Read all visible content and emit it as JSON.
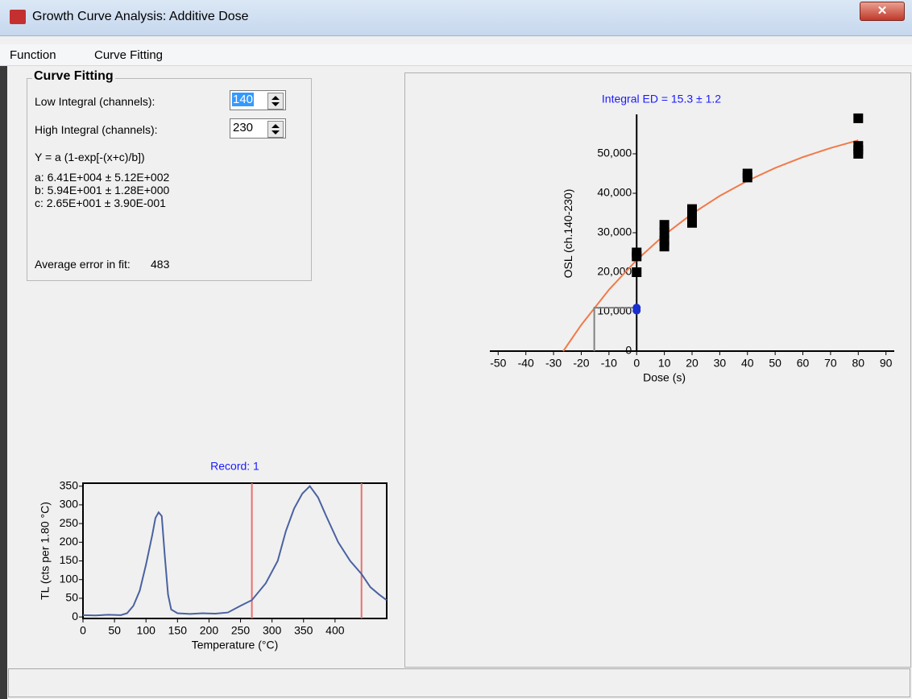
{
  "window": {
    "title": "Growth Curve Analysis: Additive Dose"
  },
  "menu": [
    "Function",
    "Curve Fitting"
  ],
  "curve_fitting": {
    "title": "Curve Fitting",
    "low_label": "Low Integral (channels):",
    "low_value": "140",
    "high_label": "High Integral (channels):",
    "high_value": "230",
    "equation": "Y = a (1-exp[-(x+c)/b])",
    "params": [
      "a: 6.41E+004 ± 5.12E+002",
      "b: 5.94E+001 ± 1.28E+000",
      "c: 2.65E+001 ± 3.90E-001"
    ],
    "avg_error_label": "Average error in fit:",
    "avg_error": "483"
  },
  "chart_data": [
    {
      "type": "scatter",
      "axes": "cross",
      "title": "Integral ED = 15.3 ±  1.2",
      "title_color": "#1a1aff",
      "x_label": "Dose (s)",
      "y_label": "OSL (ch.140-230)",
      "xlim": [
        -53,
        93
      ],
      "ylim": [
        0,
        60000
      ],
      "xticks": [
        -50,
        -40,
        -30,
        -20,
        -10,
        0,
        10,
        20,
        30,
        40,
        50,
        60,
        70,
        80,
        90
      ],
      "yticks": [
        0,
        {
          "value": 10000,
          "label": "10,000"
        },
        {
          "value": 20000,
          "label": "20,000"
        },
        {
          "value": 30000,
          "label": "30,000"
        },
        {
          "value": 40000,
          "label": "40,000"
        },
        {
          "value": 50000,
          "label": "50,000"
        }
      ],
      "series": [
        {
          "style": "line",
          "color": "#f07a4a",
          "x": [
            -26.5,
            -20,
            -10,
            0,
            10,
            20,
            30,
            40,
            50,
            60,
            70,
            80
          ],
          "values": [
            0,
            6640,
            15550,
            23070,
            29430,
            34800,
            39340,
            43170,
            46410,
            49160,
            51470,
            53430
          ]
        },
        {
          "style": "line",
          "color": "#808080",
          "x": [
            -15.3,
            -15.3,
            0
          ],
          "values": [
            0,
            11000,
            11000
          ]
        },
        {
          "style": "square",
          "color": "#000000",
          "x": [
            0,
            0,
            0,
            10,
            10,
            10,
            10,
            20,
            20,
            20,
            40,
            40,
            80,
            80,
            80,
            80
          ],
          "values": [
            25000,
            24000,
            20000,
            32000,
            30000,
            28000,
            26500,
            36000,
            34000,
            32500,
            45000,
            44000,
            59000,
            52000,
            51000,
            50000
          ]
        },
        {
          "style": "circle",
          "color": "#1a2fcf",
          "x": [
            0,
            0
          ],
          "values": [
            11000,
            10300
          ]
        }
      ]
    },
    {
      "type": "line",
      "axes": "box",
      "title": "Record: 1",
      "title_color": "#1a1aff",
      "x_label": "Temperature (°C)",
      "y_label": "TL (cts per 1.80 °C)",
      "xlim": [
        0,
        482
      ],
      "ylim": [
        -4,
        358
      ],
      "xticks": [
        0,
        50,
        100,
        150,
        200,
        250,
        300,
        350,
        400
      ],
      "yticks": [
        0,
        50,
        100,
        150,
        200,
        250,
        300,
        350
      ],
      "limits": [
        268,
        442
      ],
      "limit_color": "#e8706e",
      "series": [
        {
          "style": "line",
          "color": "#4a62a0",
          "x": [
            0,
            20,
            40,
            60,
            70,
            80,
            90,
            100,
            110,
            115,
            120,
            125,
            130,
            135,
            140,
            150,
            170,
            190,
            210,
            230,
            250,
            268,
            290,
            309,
            322,
            335,
            348,
            360,
            373,
            386,
            405,
            424,
            442,
            456,
            470,
            482
          ],
          "values": [
            5,
            4,
            6,
            5,
            10,
            30,
            70,
            140,
            220,
            265,
            280,
            270,
            160,
            60,
            20,
            10,
            8,
            10,
            9,
            12,
            30,
            45,
            90,
            150,
            230,
            290,
            330,
            350,
            320,
            270,
            200,
            150,
            115,
            80,
            60,
            45
          ]
        }
      ]
    }
  ]
}
